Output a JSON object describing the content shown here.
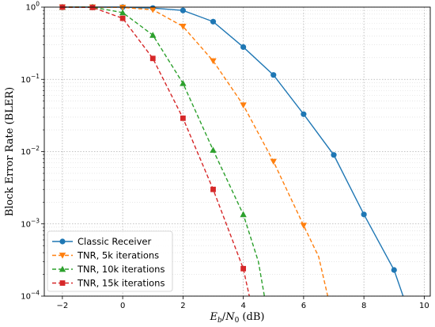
{
  "chart_data": {
    "type": "line",
    "xlabel": "E_b/N_0 (dB)",
    "ylabel": "Block Error Rate (BLER)",
    "xlim": [
      -2.6,
      10.2
    ],
    "ylim": [
      0.0001,
      1
    ],
    "yscale": "log",
    "x_ticks": [
      -2,
      0,
      2,
      4,
      6,
      8,
      10
    ],
    "x_tick_labels": [
      "−2",
      "0",
      "2",
      "4",
      "6",
      "8",
      "10"
    ],
    "y_ticks": [
      1,
      0.1,
      0.01,
      0.001,
      0.0001
    ],
    "y_tick_labels": [
      "10^0",
      "10^-1",
      "10^-2",
      "10^-3",
      "10^-4"
    ],
    "grid": true,
    "legend_position": "bottom-left",
    "series": [
      {
        "name": "Classic Receiver",
        "color": "#1f77b4",
        "marker": "circle",
        "linestyle": "solid",
        "x": [
          -2,
          -1,
          0,
          1,
          2,
          3,
          4,
          5,
          6,
          7,
          8,
          9,
          9.3
        ],
        "y": [
          1,
          1,
          1,
          0.97,
          0.9,
          0.63,
          0.28,
          0.115,
          0.033,
          0.009,
          0.00135,
          0.00023,
          0.0001
        ],
        "markers_x": [
          -2,
          -1,
          0,
          1,
          2,
          3,
          4,
          5,
          6,
          7,
          8,
          9
        ]
      },
      {
        "name": "TNR, 5k iterations",
        "color": "#ff7f0e",
        "marker": "triangle-down",
        "linestyle": "dashed",
        "x": [
          -2,
          -1,
          0,
          1,
          2,
          3,
          4,
          5,
          6,
          6.5,
          6.8
        ],
        "y": [
          1,
          1,
          0.99,
          0.92,
          0.54,
          0.18,
          0.044,
          0.0073,
          0.00095,
          0.00035,
          0.0001
        ],
        "markers_x": [
          -2,
          -1,
          0,
          1,
          2,
          3,
          4,
          5,
          6
        ]
      },
      {
        "name": "TNR, 10k iterations",
        "color": "#2ca02c",
        "marker": "triangle-up",
        "linestyle": "dashed",
        "x": [
          -2,
          -1,
          0,
          1,
          2,
          3,
          4,
          4.5,
          4.7
        ],
        "y": [
          1,
          1,
          0.84,
          0.41,
          0.088,
          0.0105,
          0.00135,
          0.0003,
          0.0001
        ],
        "markers_x": [
          -2,
          -1,
          0,
          1,
          2,
          3,
          4
        ]
      },
      {
        "name": "TNR, 15k iterations",
        "color": "#d62728",
        "marker": "square",
        "linestyle": "dashed",
        "x": [
          -2,
          -1,
          0,
          1,
          2,
          3,
          4,
          4.2
        ],
        "y": [
          1,
          0.99,
          0.7,
          0.195,
          0.029,
          0.003,
          0.00024,
          0.0001
        ],
        "markers_x": [
          -2,
          -1,
          0,
          1,
          2,
          3,
          4
        ]
      }
    ]
  }
}
